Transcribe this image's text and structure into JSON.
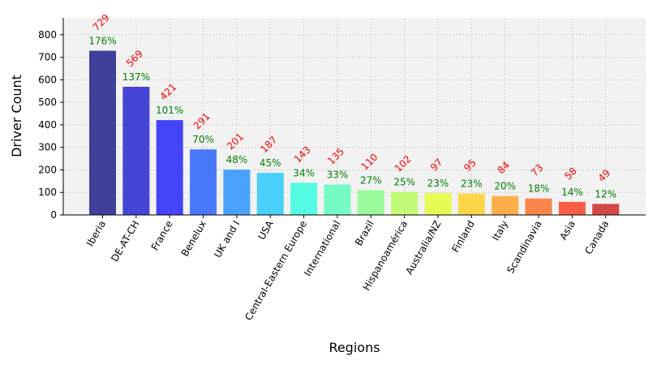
{
  "chart_data": {
    "type": "bar",
    "xlabel": "Regions",
    "ylabel": "Driver Count",
    "categories": [
      "Iberia",
      "DE-AT-CH",
      "France",
      "Benelux",
      "UK and I",
      "USA",
      "Central-Eastern Europe",
      "International",
      "Brazil",
      "Hispanoamérica",
      "Australia/NZ",
      "Finland",
      "Italy",
      "Scandinavia",
      "Asia",
      "Canada"
    ],
    "values": [
      729,
      569,
      421,
      291,
      201,
      187,
      143,
      135,
      110,
      102,
      97,
      95,
      84,
      73,
      58,
      49
    ],
    "value_labels": [
      "729",
      "569",
      "421",
      "291",
      "201",
      "187",
      "143",
      "135",
      "110",
      "102",
      "97",
      "95",
      "84",
      "73",
      "58",
      "49"
    ],
    "percent_labels": [
      "176%",
      "137%",
      "101%",
      "70%",
      "48%",
      "45%",
      "34%",
      "33%",
      "27%",
      "25%",
      "23%",
      "23%",
      "20%",
      "18%",
      "14%",
      "12%"
    ],
    "bar_colors": [
      "#3f3f9c",
      "#4545d6",
      "#4444f8",
      "#4a78fb",
      "#4aa2fa",
      "#49cff9",
      "#55fbe2",
      "#75fbc4",
      "#9bfb9b",
      "#c2fb75",
      "#e7fb55",
      "#fbd64a",
      "#fbaf4a",
      "#fb854a",
      "#f95f47",
      "#d44747"
    ],
    "ylim": [
      0,
      875
    ],
    "yticks": [
      0,
      100,
      200,
      300,
      400,
      500,
      600,
      700,
      800
    ],
    "grid": true,
    "value_label_color": "#ff0000",
    "percent_label_color": "#008000",
    "plot_background": "#f2f2f2"
  }
}
